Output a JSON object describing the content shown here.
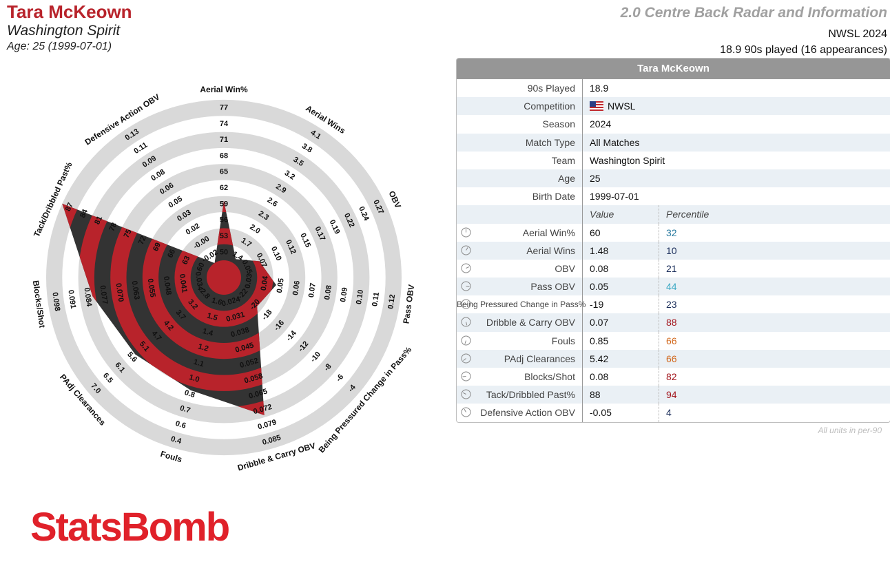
{
  "header": {
    "player_name": "Tara McKeown",
    "team": "Washington Spirit",
    "age_line": "Age: 25 (1999-07-01)",
    "report_title": "2.0 Centre Back Radar and Information",
    "competition_season": "NWSL 2024",
    "played_line": "18.9 90s played (16 appearances)"
  },
  "colors": {
    "accent_red": "#b8232b",
    "dark_band": "#333333",
    "ring_grey": "#d9d9d9",
    "logo_red": "#e0212a"
  },
  "chart_data": {
    "type": "radar",
    "title": "",
    "rings": 5,
    "axes": [
      {
        "label": "Aerial Win%",
        "ticks": [
          "50",
          "53",
          "56",
          "59",
          "62",
          "65",
          "68",
          "71",
          "74",
          "77"
        ],
        "min": 50,
        "max": 77,
        "value": 60
      },
      {
        "label": "Aerial Wins",
        "ticks": [
          "1.4",
          "1.7",
          "2.0",
          "2.3",
          "2.6",
          "2.9",
          "3.2",
          "3.5",
          "3.8",
          "4.1"
        ],
        "min": 1.4,
        "max": 4.1,
        "value": 1.48
      },
      {
        "label": "OBV",
        "ticks": [
          "0.05",
          "0.07",
          "0.10",
          "0.12",
          "0.15",
          "0.17",
          "0.19",
          "0.22",
          "0.24",
          "0.27"
        ],
        "min": 0.05,
        "max": 0.27,
        "value": 0.08
      },
      {
        "label": "Pass OBV",
        "ticks": [
          "0.03",
          "0.04",
          "0.05",
          "0.06",
          "0.07",
          "0.08",
          "0.09",
          "0.10",
          "0.11",
          "0.12"
        ],
        "min": 0.03,
        "max": 0.12,
        "value": 0.05
      },
      {
        "label": "Being Pressured Change in Pass%",
        "ticks": [
          "-22",
          "-20",
          "-18",
          "-16",
          "-14",
          "-12",
          "-10",
          "-8",
          "-6",
          "-4"
        ],
        "min": -22,
        "max": -4,
        "value": -19
      },
      {
        "label": "Dribble & Carry OBV",
        "ticks": [
          "0.024",
          "0.031",
          "0.038",
          "0.045",
          "0.052",
          "0.058",
          "0.065",
          "0.072",
          "0.079",
          "0.085"
        ],
        "min": 0.024,
        "max": 0.085,
        "value": 0.072
      },
      {
        "label": "Fouls",
        "ticks": [
          "1.6",
          "1.5",
          "1.4",
          "1.2",
          "1.1",
          "1.0",
          "0.8",
          "0.7",
          "0.6",
          "0.4"
        ],
        "min": 1.6,
        "max": 0.4,
        "value": 0.85
      },
      {
        "label": "PAdj Clearances",
        "ticks": [
          "2.8",
          "3.2",
          "3.7",
          "4.2",
          "4.7",
          "5.1",
          "5.6",
          "6.1",
          "6.5",
          "7.0"
        ],
        "min": 2.8,
        "max": 7.0,
        "value": 5.42
      },
      {
        "label": "Blocks/Shot",
        "ticks": [
          "0.034",
          "0.041",
          "0.048",
          "0.055",
          "0.063",
          "0.070",
          "0.077",
          "0.084",
          "0.091",
          "0.098"
        ],
        "min": 0.034,
        "max": 0.098,
        "value": 0.08
      },
      {
        "label": "Tack/Dribbled Past%",
        "ticks": [
          "60",
          "63",
          "66",
          "69",
          "72",
          "75",
          "78",
          "81",
          "84",
          "87"
        ],
        "min": 60,
        "max": 87,
        "value": 88
      },
      {
        "label": "Defensive Action OBV",
        "ticks": [
          "-0.02",
          "-0.00",
          "0.02",
          "0.03",
          "0.05",
          "0.06",
          "0.08",
          "0.09",
          "0.11",
          "0.13"
        ],
        "min": -0.02,
        "max": 0.13,
        "value": -0.05
      }
    ]
  },
  "info_table": {
    "header": "Tara McKeown",
    "rows": [
      {
        "label": "90s Played",
        "value": "18.9"
      },
      {
        "label": "Competition",
        "value": "NWSL",
        "flag": "us-flag"
      },
      {
        "label": "Season",
        "value": "2024"
      },
      {
        "label": "Match Type",
        "value": "All Matches"
      },
      {
        "label": "Team",
        "value": "Washington Spirit"
      },
      {
        "label": "Age",
        "value": "25"
      },
      {
        "label": "Birth Date",
        "value": "1999-07-01"
      }
    ],
    "col_value": "Value",
    "col_percentile": "Percentile",
    "metrics": [
      {
        "label": "Aerial Win%",
        "value": "60",
        "percentile": "32",
        "color": "#2a7ba0"
      },
      {
        "label": "Aerial Wins",
        "value": "1.48",
        "percentile": "10",
        "color": "#1a2d5a"
      },
      {
        "label": "OBV",
        "value": "0.08",
        "percentile": "21",
        "color": "#1a2d5a"
      },
      {
        "label": "Pass OBV",
        "value": "0.05",
        "percentile": "44",
        "color": "#3aa8c4"
      },
      {
        "label": "Being Pressured Change in Pass%",
        "value": "-19",
        "percentile": "23",
        "color": "#1a2d5a"
      },
      {
        "label": "Dribble & Carry OBV",
        "value": "0.07",
        "percentile": "88",
        "color": "#a3161d"
      },
      {
        "label": "Fouls",
        "value": "0.85",
        "percentile": "66",
        "color": "#d2691e"
      },
      {
        "label": "PAdj Clearances",
        "value": "5.42",
        "percentile": "66",
        "color": "#d2691e"
      },
      {
        "label": "Blocks/Shot",
        "value": "0.08",
        "percentile": "82",
        "color": "#a3161d"
      },
      {
        "label": "Tack/Dribbled Past%",
        "value": "88",
        "percentile": "94",
        "color": "#a3161d"
      },
      {
        "label": "Defensive Action OBV",
        "value": "-0.05",
        "percentile": "4",
        "color": "#1a2d5a"
      }
    ]
  },
  "footer": {
    "units_note": "All units in per-90",
    "logo_text": "StatsBomb"
  }
}
